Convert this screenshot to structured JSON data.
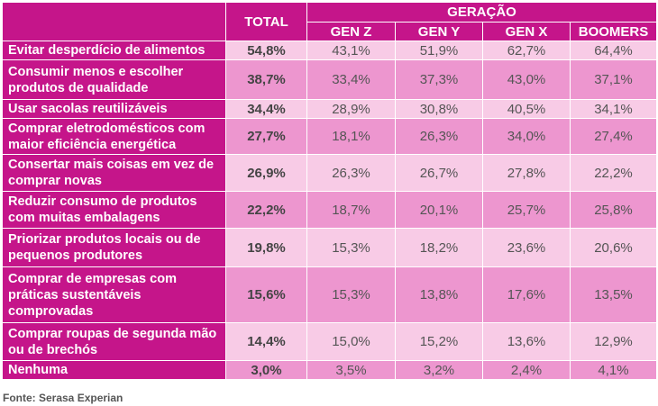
{
  "chart_data": {
    "type": "table",
    "headers": {
      "total": "TOTAL",
      "group": "GERAÇÃO",
      "generations": [
        "GEN Z",
        "GEN Y",
        "GEN X",
        "BOOMERS"
      ]
    },
    "rows": [
      {
        "label": "Evitar desperdício de alimentos",
        "total": "54,8%",
        "values": [
          "43,1%",
          "51,9%",
          "62,7%",
          "64,4%"
        ]
      },
      {
        "label": "Consumir menos e escolher produtos de qualidade",
        "total": "38,7%",
        "values": [
          "33,4%",
          "37,3%",
          "43,0%",
          "37,1%"
        ]
      },
      {
        "label": "Usar sacolas reutilizáveis",
        "total": "34,4%",
        "values": [
          "28,9%",
          "30,8%",
          "40,5%",
          "34,1%"
        ]
      },
      {
        "label": "Comprar eletrodomésticos com maior eficiência energética",
        "total": "27,7%",
        "values": [
          "18,1%",
          "26,3%",
          "34,0%",
          "27,4%"
        ]
      },
      {
        "label": "Consertar mais coisas em vez de comprar novas",
        "total": "26,9%",
        "values": [
          "26,3%",
          "26,7%",
          "27,8%",
          "22,2%"
        ]
      },
      {
        "label": "Reduzir consumo de produtos com muitas embalagens",
        "total": "22,2%",
        "values": [
          "18,7%",
          "20,1%",
          "25,7%",
          "25,8%"
        ]
      },
      {
        "label": "Priorizar produtos locais ou de pequenos produtores",
        "total": "19,8%",
        "values": [
          "15,3%",
          "18,2%",
          "23,6%",
          "20,6%"
        ]
      },
      {
        "label": "Comprar de empresas com práticas sustentáveis comprovadas",
        "total": "15,6%",
        "values": [
          "15,3%",
          "13,8%",
          "17,6%",
          "13,5%"
        ]
      },
      {
        "label": "Comprar roupas de segunda mão ou de brechós",
        "total": "14,4%",
        "values": [
          "15,0%",
          "15,2%",
          "13,6%",
          "12,9%"
        ]
      },
      {
        "label": "Nenhuma",
        "total": "3,0%",
        "values": [
          "3,5%",
          "3,2%",
          "2,4%",
          "4,1%"
        ]
      }
    ],
    "source": "Fonte: Serasa Experian"
  }
}
